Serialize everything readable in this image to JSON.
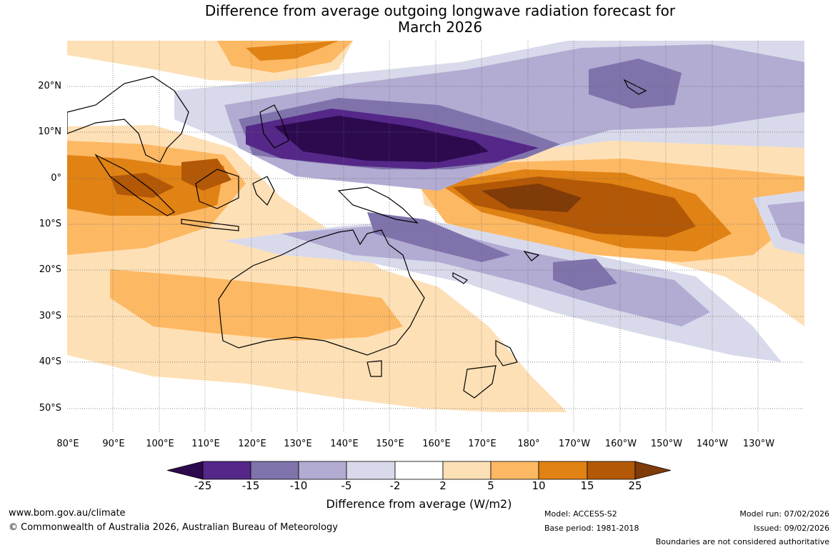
{
  "title_line1": "Difference from average outgoing longwave radiation forecast for",
  "title_line2": "March 2026",
  "map": {
    "lat_labels": [
      "20°N",
      "10°N",
      "0°",
      "10°S",
      "20°S",
      "30°S",
      "40°S",
      "50°S"
    ],
    "lon_labels": [
      "80°E",
      "90°E",
      "100°E",
      "110°E",
      "120°E",
      "130°E",
      "140°E",
      "150°E",
      "160°E",
      "170°E",
      "180°",
      "170°W",
      "160°W",
      "150°W",
      "140°W",
      "130°W"
    ],
    "region": "Indian Ocean, Maritime Continent, Australia and West/Central Pacific"
  },
  "colorbar": {
    "ticks": [
      "-25",
      "-15",
      "-10",
      "-5",
      "-2",
      "2",
      "5",
      "10",
      "15",
      "25"
    ],
    "colors": [
      "#2d0a4e",
      "#542788",
      "#8073ac",
      "#b2abd2",
      "#d8daeb",
      "#ffffff",
      "#fee0b6",
      "#fdb863",
      "#e08214",
      "#b35806",
      "#7f3b08"
    ],
    "label": "Difference from average (W/m2)"
  },
  "footer": {
    "website": "www.bom.gov.au/climate",
    "copyright": "© Commonwealth of Australia 2026, Australian Bureau of Meteorology",
    "model": "Model: ACCESS-S2",
    "base_period": "Base period: 1981-2018",
    "model_run": "Model run: 07/02/2026",
    "issued": "Issued: 09/02/2026",
    "disclaimer": "Boundaries are not considered authoritative"
  }
}
